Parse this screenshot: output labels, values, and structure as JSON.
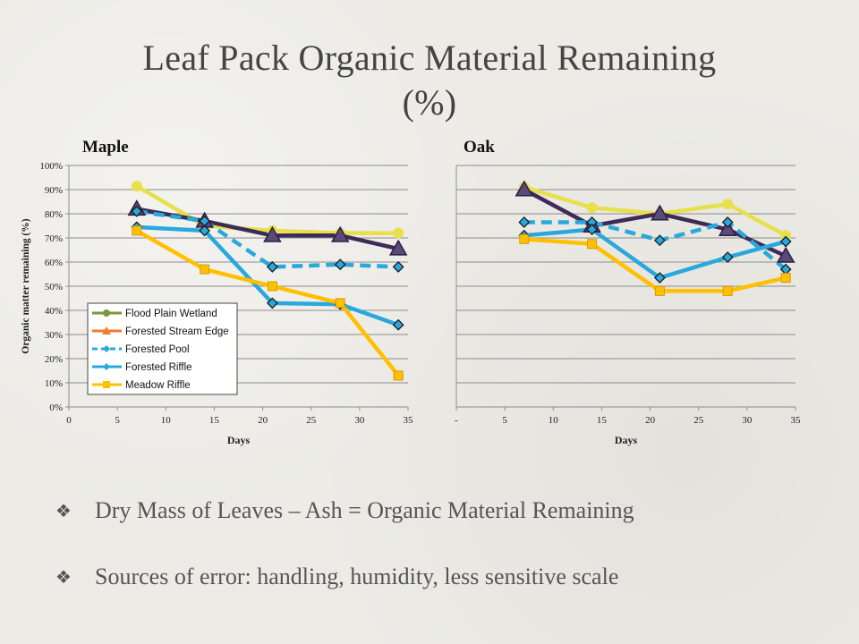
{
  "slide": {
    "title_line1": "Leaf Pack Organic Material Remaining",
    "title_line2": "(%)",
    "bullet_symbol": "❖",
    "bullets": [
      "Dry Mass of Leaves – Ash = Organic Material Remaining",
      "Sources of error: handling, humidity, less sensitive scale"
    ]
  },
  "chart_data": [
    {
      "type": "line",
      "title": "Maple",
      "xlabel": "Days",
      "ylabel": "Organic matter remaining (%)",
      "xlim": [
        0,
        35
      ],
      "ylim": [
        0,
        100
      ],
      "x_ticks": [
        "0",
        "5",
        "10",
        "15",
        "20",
        "25",
        "30",
        "35"
      ],
      "y_ticks": [
        "0%",
        "10%",
        "20%",
        "30%",
        "40%",
        "50%",
        "60%",
        "70%",
        "80%",
        "90%",
        "100%"
      ],
      "grid": true,
      "legend_position": "bottom-left",
      "legend_entries": [
        "Flood Plain Wetland",
        "Forested Stream Edge",
        "Forested Pool",
        "Forested Riffle",
        "Meadow Riffle"
      ],
      "legend_colors": [
        "#7a9a3a",
        "#ef7d2f",
        "#29a8dd",
        "#29a8dd",
        "#ffc000"
      ],
      "legend_markers": [
        "circle",
        "triangle",
        "diamond",
        "diamond",
        "square"
      ],
      "legend_dashed": [
        false,
        false,
        true,
        false,
        false
      ],
      "series": [
        {
          "x": [
            7,
            14,
            21,
            28,
            34
          ],
          "y": [
            91.5,
            75,
            73,
            72,
            72
          ],
          "color": "#e8e04a",
          "marker": "circle",
          "dashed": false
        },
        {
          "x": [
            7,
            14,
            21,
            28,
            34
          ],
          "y": [
            82,
            77,
            71,
            71,
            65.5
          ],
          "color": "#3e2b57",
          "marker": "triangle",
          "dashed": false
        },
        {
          "x": [
            7,
            14,
            21,
            28,
            34
          ],
          "y": [
            81,
            77,
            58,
            59,
            58
          ],
          "color": "#29a8dd",
          "marker": "diamond",
          "dashed": true
        },
        {
          "x": [
            7,
            14,
            21,
            28,
            34
          ],
          "y": [
            74.5,
            73,
            43,
            42.5,
            34
          ],
          "color": "#29a8dd",
          "marker": "diamond",
          "dashed": false
        },
        {
          "x": [
            7,
            14,
            21,
            28,
            34
          ],
          "y": [
            73,
            57,
            50,
            43,
            13
          ],
          "color": "#ffc000",
          "marker": "square",
          "dashed": false
        }
      ]
    },
    {
      "type": "line",
      "title": "Oak",
      "xlabel": "Days",
      "xlim": [
        0,
        35
      ],
      "ylim": [
        0,
        100
      ],
      "x_ticks": [
        "-",
        "5",
        "10",
        "15",
        "20",
        "25",
        "30",
        "35"
      ],
      "grid": true,
      "series": [
        {
          "x": [
            7,
            14,
            21,
            28,
            34
          ],
          "y": [
            91,
            82.5,
            80,
            84,
            71
          ],
          "color": "#e8e04a",
          "marker": "circle",
          "dashed": false
        },
        {
          "x": [
            7,
            14,
            21,
            28,
            34
          ],
          "y": [
            90,
            75,
            80,
            73.5,
            62.5
          ],
          "color": "#3e2b57",
          "marker": "triangle",
          "dashed": false
        },
        {
          "x": [
            7,
            14,
            21,
            28,
            34
          ],
          "y": [
            76.5,
            76.5,
            69,
            76.5,
            57
          ],
          "color": "#29a8dd",
          "marker": "diamond",
          "dashed": true
        },
        {
          "x": [
            7,
            14,
            21,
            28,
            34
          ],
          "y": [
            71,
            73.5,
            53.5,
            62,
            68.5
          ],
          "color": "#29a8dd",
          "marker": "diamond",
          "dashed": false
        },
        {
          "x": [
            7,
            14,
            21,
            28,
            34
          ],
          "y": [
            69.5,
            67.5,
            48,
            48,
            53.5
          ],
          "color": "#ffc000",
          "marker": "square",
          "dashed": false
        }
      ]
    }
  ]
}
